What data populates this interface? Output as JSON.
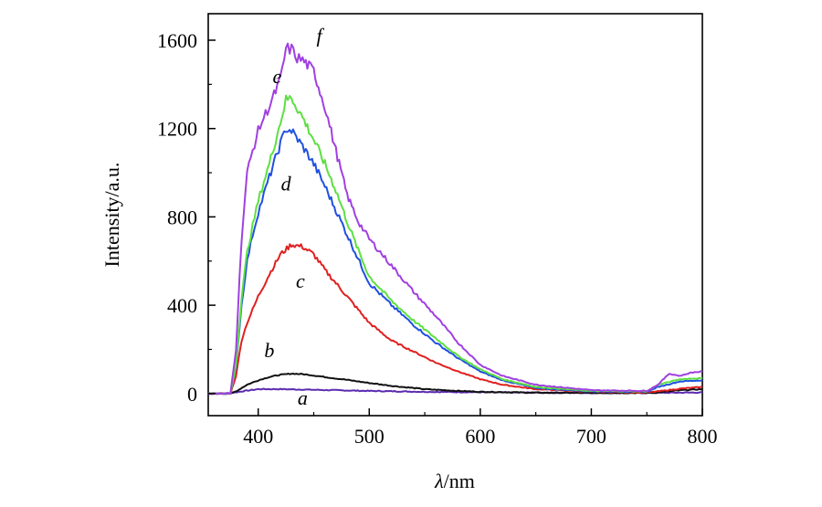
{
  "chart_data": {
    "type": "line",
    "title": "",
    "xlabel": "λ/nm",
    "xlabel_symbol": "λ",
    "xlabel_unit": "/nm",
    "ylabel": "Intensity/a.u.",
    "xlim": [
      355,
      800
    ],
    "ylim": [
      -100,
      1720
    ],
    "xticks": [
      400,
      500,
      600,
      700,
      800
    ],
    "yticks": [
      0,
      400,
      800,
      1200,
      1600
    ],
    "grid": false,
    "legend": "inline curve labels",
    "series": [
      {
        "name": "a",
        "color": "#5b2bb0",
        "label_at": [
          440,
          -50
        ],
        "x": [
          355,
          375,
          385,
          400,
          420,
          440,
          460,
          500,
          550,
          600,
          650,
          700,
          750,
          800
        ],
        "y": [
          0,
          2,
          10,
          20,
          20,
          18,
          16,
          12,
          8,
          6,
          4,
          3,
          3,
          5
        ]
      },
      {
        "name": "b",
        "color": "#111111",
        "label_at": [
          410,
          165
        ],
        "x": [
          355,
          375,
          380,
          390,
          400,
          410,
          420,
          430,
          440,
          450,
          460,
          480,
          500,
          520,
          550,
          580,
          600,
          650,
          700,
          750,
          760,
          780,
          800
        ],
        "y": [
          0,
          0,
          10,
          40,
          60,
          75,
          85,
          90,
          88,
          82,
          75,
          62,
          48,
          35,
          20,
          12,
          8,
          4,
          3,
          3,
          5,
          15,
          20
        ]
      },
      {
        "name": "c",
        "color": "#e02020",
        "label_at": [
          438,
          480
        ],
        "x": [
          355,
          375,
          380,
          385,
          390,
          395,
          400,
          410,
          420,
          430,
          440,
          450,
          460,
          470,
          480,
          490,
          500,
          510,
          520,
          540,
          560,
          580,
          600,
          620,
          650,
          700,
          750,
          760,
          780,
          800
        ],
        "y": [
          0,
          0,
          80,
          240,
          320,
          380,
          440,
          540,
          630,
          675,
          665,
          630,
          560,
          500,
          440,
          380,
          320,
          280,
          240,
          190,
          140,
          100,
          65,
          40,
          20,
          8,
          5,
          10,
          22,
          30
        ]
      },
      {
        "name": "d",
        "color": "#2050e0",
        "label_at": [
          425,
          920
        ],
        "x": [
          355,
          375,
          380,
          385,
          390,
          395,
          400,
          405,
          410,
          420,
          425,
          430,
          440,
          450,
          460,
          470,
          480,
          490,
          500,
          520,
          540,
          560,
          580,
          600,
          620,
          650,
          700,
          750,
          760,
          780,
          800
        ],
        "y": [
          0,
          0,
          120,
          400,
          600,
          720,
          820,
          900,
          980,
          1130,
          1200,
          1190,
          1120,
          1040,
          940,
          830,
          720,
          610,
          500,
          400,
          310,
          230,
          160,
          100,
          60,
          25,
          10,
          8,
          30,
          55,
          60
        ]
      },
      {
        "name": "e",
        "color": "#5ce040",
        "label_at": [
          417,
          1405
        ],
        "x": [
          355,
          375,
          380,
          385,
          390,
          395,
          400,
          405,
          410,
          420,
          425,
          430,
          440,
          450,
          460,
          470,
          480,
          490,
          500,
          520,
          540,
          560,
          580,
          600,
          620,
          650,
          700,
          750,
          760,
          780,
          800
        ],
        "y": [
          0,
          0,
          130,
          430,
          640,
          760,
          870,
          960,
          1040,
          1230,
          1330,
          1340,
          1250,
          1150,
          1040,
          920,
          780,
          650,
          530,
          420,
          330,
          250,
          170,
          110,
          65,
          30,
          12,
          10,
          40,
          65,
          70
        ]
      },
      {
        "name": "f",
        "color": "#a040e0",
        "label_at": [
          455,
          1590
        ],
        "x": [
          355,
          375,
          380,
          385,
          390,
          395,
          400,
          405,
          410,
          420,
          425,
          430,
          435,
          440,
          450,
          460,
          470,
          480,
          490,
          500,
          510,
          520,
          540,
          560,
          580,
          600,
          620,
          650,
          700,
          750,
          760,
          770,
          780,
          790,
          800
        ],
        "y": [
          0,
          0,
          200,
          700,
          1000,
          1100,
          1190,
          1250,
          1300,
          1420,
          1560,
          1560,
          1520,
          1510,
          1460,
          1300,
          1100,
          900,
          780,
          700,
          640,
          580,
          460,
          350,
          230,
          130,
          80,
          40,
          15,
          12,
          40,
          90,
          80,
          95,
          100
        ]
      }
    ]
  }
}
